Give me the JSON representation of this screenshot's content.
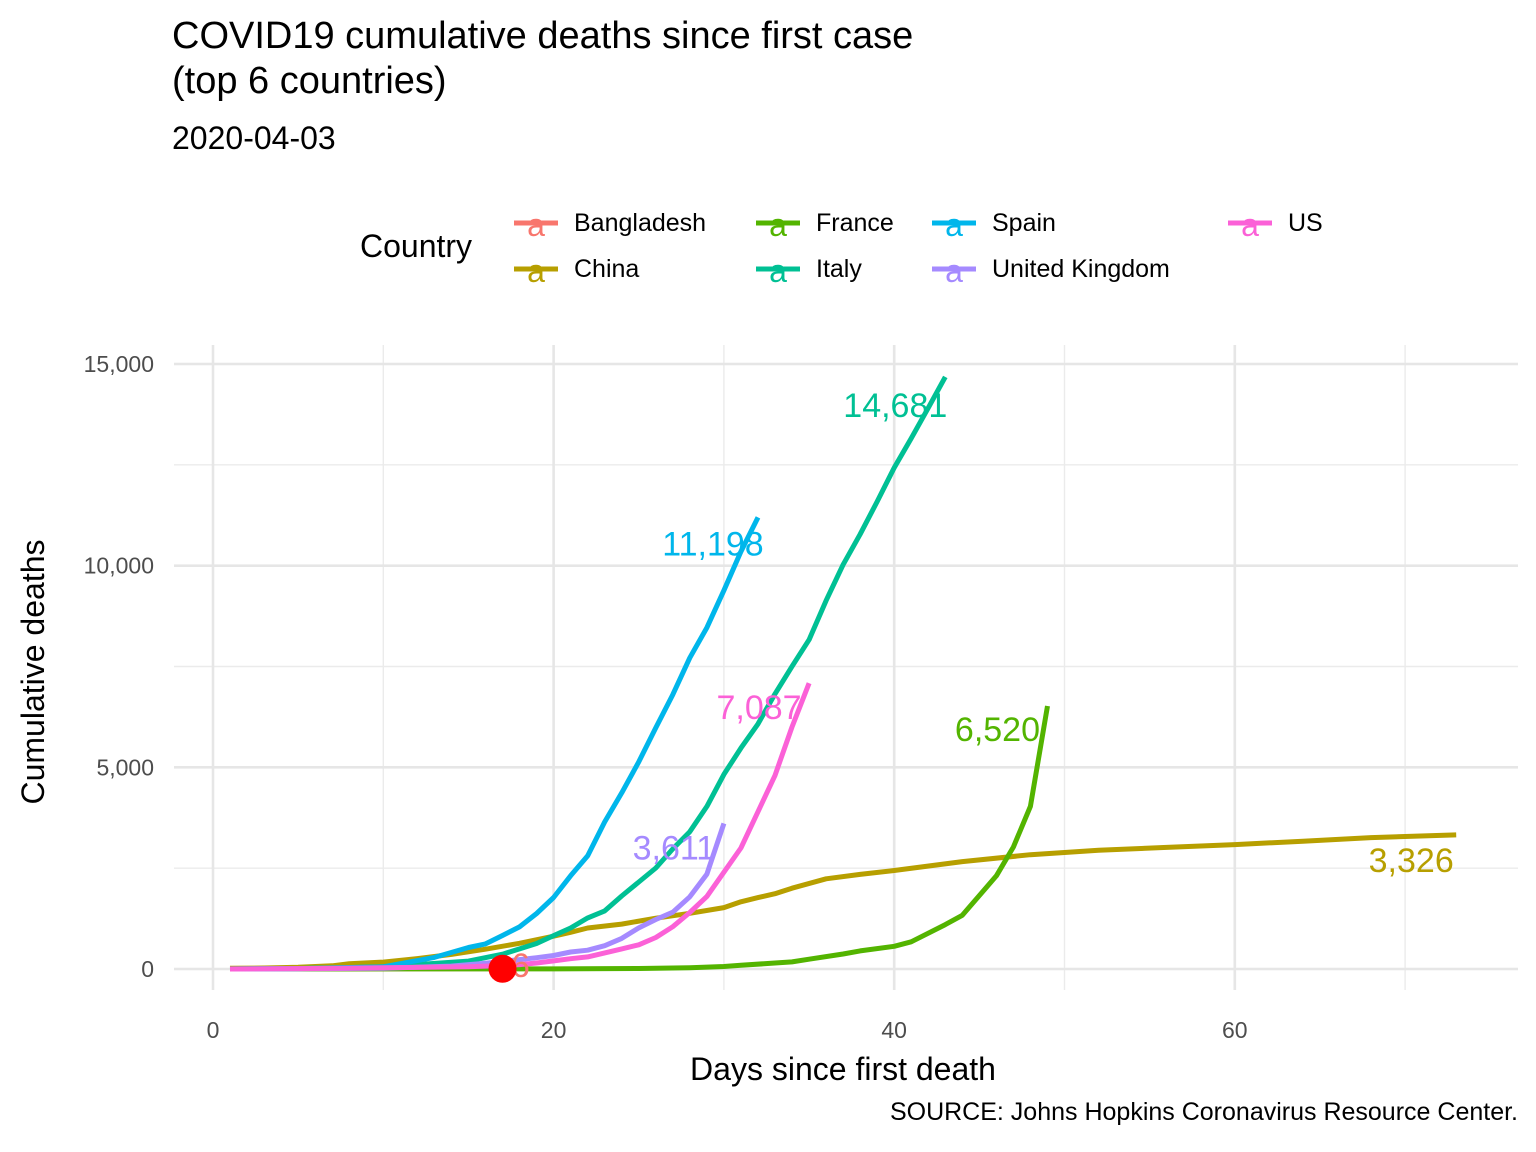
{
  "title_line1": "COVID19 cumulative deaths since first case",
  "title_line2": "(top 6 countries)",
  "subtitle": "2020-04-03",
  "caption": "SOURCE: Johns Hopkins Coronavirus Resource Center.",
  "legend": {
    "title": "Country",
    "key_glyph": "a"
  },
  "chart_data": {
    "type": "line",
    "xlabel": "Days since first death",
    "ylabel": "Cumulative deaths",
    "xlim": [
      0,
      73
    ],
    "ylim": [
      0,
      15000
    ],
    "x_ticks": [
      0,
      20,
      40,
      60
    ],
    "y_ticks": [
      0,
      5000,
      10000,
      15000
    ],
    "y_tick_labels": [
      "0",
      "5,000",
      "10,000",
      "15,000"
    ],
    "grid": true,
    "legend_position": "top",
    "highlight_point": {
      "x": 17,
      "y": 6,
      "color": "#ff0000"
    },
    "series": [
      {
        "name": "Bangladesh",
        "color": "#F8766D",
        "end_label": "6",
        "x": [
          1,
          5,
          10,
          15,
          17
        ],
        "y": [
          1,
          2,
          3,
          5,
          6
        ]
      },
      {
        "name": "China",
        "color": "#B79F00",
        "end_label": "3,326",
        "x": [
          1,
          3,
          5,
          7,
          8,
          10,
          12,
          14,
          16,
          18,
          20,
          21,
          22,
          24,
          26,
          28,
          30,
          31,
          32,
          33,
          34,
          36,
          38,
          40,
          44,
          48,
          52,
          56,
          60,
          64,
          68,
          73
        ],
        "y": [
          17,
          25,
          41,
          80,
          132,
          170,
          259,
          361,
          490,
          638,
          813,
          910,
          1016,
          1113,
          1259,
          1381,
          1523,
          1665,
          1770,
          1868,
          2004,
          2236,
          2345,
          2442,
          2663,
          2835,
          2943,
          3016,
          3085,
          3169,
          3258,
          3326
        ]
      },
      {
        "name": "France",
        "color": "#53B400",
        "end_label": "6,520",
        "x": [
          1,
          10,
          20,
          25,
          28,
          30,
          31,
          33,
          34,
          35,
          37,
          38,
          40,
          41,
          43,
          44,
          46,
          47,
          48,
          49
        ],
        "y": [
          1,
          2,
          3,
          12,
          33,
          61,
          91,
          148,
          175,
          244,
          372,
          450,
          562,
          674,
          1100,
          1331,
          2311,
          3024,
          4032,
          6520
        ]
      },
      {
        "name": "Italy",
        "color": "#00C094",
        "end_label": "14,681",
        "x": [
          1,
          5,
          10,
          15,
          17,
          19,
          20,
          21,
          22,
          23,
          24,
          25,
          26,
          27,
          28,
          29,
          30,
          31,
          32,
          33,
          34,
          35,
          36,
          37,
          38,
          39,
          40,
          41,
          42,
          43
        ],
        "y": [
          2,
          12,
          52,
          197,
          366,
          631,
          827,
          1016,
          1266,
          1441,
          1809,
          2158,
          2503,
          2978,
          3405,
          4032,
          4825,
          5476,
          6077,
          6820,
          7503,
          8165,
          9134,
          10023,
          10779,
          11591,
          12428,
          13155,
          13915,
          14681
        ]
      },
      {
        "name": "Spain",
        "color": "#00B6EB",
        "end_label": "11,198",
        "x": [
          1,
          5,
          10,
          13,
          15,
          16,
          17,
          18,
          19,
          20,
          21,
          22,
          23,
          24,
          25,
          26,
          27,
          28,
          29,
          30,
          31,
          32
        ],
        "y": [
          1,
          10,
          55,
          288,
          533,
          623,
          830,
          1043,
          1375,
          1772,
          2311,
          2808,
          3647,
          4365,
          5138,
          5982,
          6803,
          7716,
          8464,
          9387,
          10348,
          11198
        ]
      },
      {
        "name": "United Kingdom",
        "color": "#A58AFF",
        "end_label": "3,611",
        "x": [
          1,
          5,
          10,
          14,
          16,
          18,
          19,
          20,
          21,
          22,
          23,
          24,
          25,
          26,
          27,
          28,
          29,
          30
        ],
        "y": [
          1,
          8,
          21,
          71,
          144,
          233,
          281,
          335,
          422,
          465,
          578,
          759,
          1019,
          1228,
          1408,
          1789,
          2352,
          3611
        ]
      },
      {
        "name": "US",
        "color": "#FB61D7",
        "end_label": "7,087",
        "x": [
          1,
          5,
          10,
          15,
          17,
          18,
          19,
          20,
          21,
          22,
          23,
          24,
          25,
          26,
          27,
          28,
          29,
          30,
          31,
          32,
          33,
          34,
          35
        ],
        "y": [
          1,
          11,
          31,
          58,
          86,
          108,
          150,
          200,
          255,
          301,
          400,
          499,
          600,
          780,
          1050,
          1400,
          1800,
          2400,
          3000,
          3900,
          4800,
          6000,
          7087
        ]
      }
    ]
  }
}
